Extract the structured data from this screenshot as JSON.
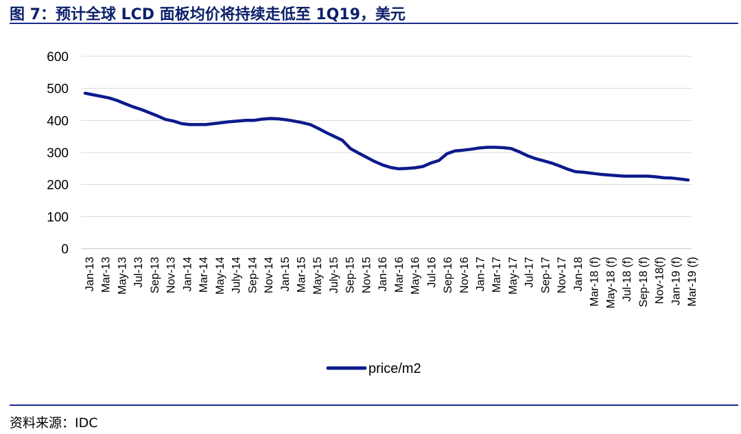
{
  "figure": {
    "title": "图 7：预计全球 LCD 面板均价将持续走低至 1Q19，美元",
    "source": "资料来源：IDC"
  },
  "colors": {
    "series": "#0d1a8c",
    "title": "#0b1f6b",
    "rule": "#1a2a8c",
    "grid": "#d9d9d9"
  },
  "chart_data": {
    "type": "line",
    "title": "",
    "xlabel": "",
    "ylabel": "",
    "ylim": [
      0,
      600
    ],
    "yticks": [
      0,
      100,
      200,
      300,
      400,
      500,
      600
    ],
    "grid": "horizontal",
    "legend_position": "bottom",
    "x_tick_labels": [
      "Jan-13",
      "Mar-13",
      "May-13",
      "Jul-13",
      "Sep-13",
      "Nov-13",
      "Jan-14",
      "Mar-14",
      "May-14",
      "July-14",
      "Sep-14",
      "Nov-14",
      "Jan-15",
      "Mar-15",
      "May-15",
      "July-15",
      "Sep-15",
      "Nov-15",
      "Jan-16",
      "Mar-16",
      "May-16",
      "Jul-16",
      "Sep-16",
      "Nov-16",
      "Jan-17",
      "Mar-17",
      "May-17",
      "Jul-17",
      "Sep-17",
      "Nov-17",
      "Jan-18",
      "Mar-18 (f)",
      "May-18 (f)",
      "Jul-18 (f)",
      "Sep-18 (f)",
      "Nov-18(f)",
      "Jan-19 (f)",
      "Mar-19 (f)"
    ],
    "series": [
      {
        "name": "price/m2",
        "values": [
          485,
          480,
          475,
          470,
          462,
          452,
          442,
          434,
          424,
          414,
          403,
          398,
          390,
          387,
          387,
          387,
          390,
          393,
          396,
          398,
          400,
          400,
          404,
          406,
          405,
          402,
          398,
          393,
          387,
          375,
          362,
          350,
          338,
          312,
          298,
          285,
          272,
          261,
          253,
          249,
          250,
          252,
          256,
          267,
          275,
          296,
          305,
          307,
          310,
          314,
          316,
          316,
          315,
          312,
          302,
          290,
          281,
          274,
          267,
          258,
          248,
          240,
          238,
          235,
          232,
          230,
          228,
          226,
          226,
          226,
          226,
          224,
          221,
          220,
          217,
          214
        ]
      }
    ]
  }
}
